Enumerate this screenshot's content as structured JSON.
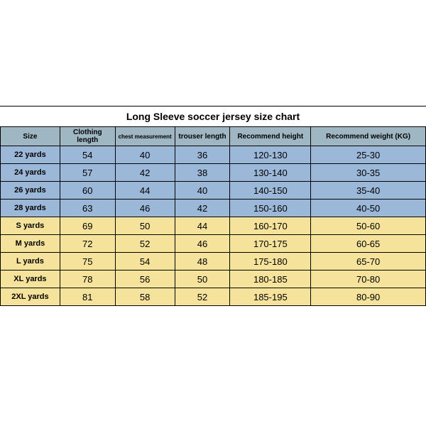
{
  "chart": {
    "type": "table",
    "title": "Long Sleeve soccer jersey size chart",
    "title_fontsize": 14,
    "header_bg": "#9fb6c3",
    "kid_row_bg": "#9cb8d8",
    "adult_row_bg": "#f5e29b",
    "border_color": "#000000",
    "columns": [
      "Size",
      "Clothing length",
      "chest measurement",
      "trouser length",
      "Recommend height",
      "Recommend weight (KG)"
    ],
    "col_widths_pct": [
      14,
      13,
      14,
      13,
      19,
      27
    ],
    "rows": [
      {
        "group": "kid",
        "cells": [
          "22 yards",
          "54",
          "40",
          "36",
          "120-130",
          "25-30"
        ]
      },
      {
        "group": "kid",
        "cells": [
          "24 yards",
          "57",
          "42",
          "38",
          "130-140",
          "30-35"
        ]
      },
      {
        "group": "kid",
        "cells": [
          "26 yards",
          "60",
          "44",
          "40",
          "140-150",
          "35-40"
        ]
      },
      {
        "group": "kid",
        "cells": [
          "28 yards",
          "63",
          "46",
          "42",
          "150-160",
          "40-50"
        ]
      },
      {
        "group": "adult",
        "cells": [
          "S yards",
          "69",
          "50",
          "44",
          "160-170",
          "50-60"
        ]
      },
      {
        "group": "adult",
        "cells": [
          "M yards",
          "72",
          "52",
          "46",
          "170-175",
          "60-65"
        ]
      },
      {
        "group": "adult",
        "cells": [
          "L yards",
          "75",
          "54",
          "48",
          "175-180",
          "65-70"
        ]
      },
      {
        "group": "adult",
        "cells": [
          "XL yards",
          "78",
          "56",
          "50",
          "180-185",
          "70-80"
        ]
      },
      {
        "group": "adult",
        "cells": [
          "2XL yards",
          "81",
          "58",
          "52",
          "185-195",
          "80-90"
        ]
      }
    ]
  }
}
